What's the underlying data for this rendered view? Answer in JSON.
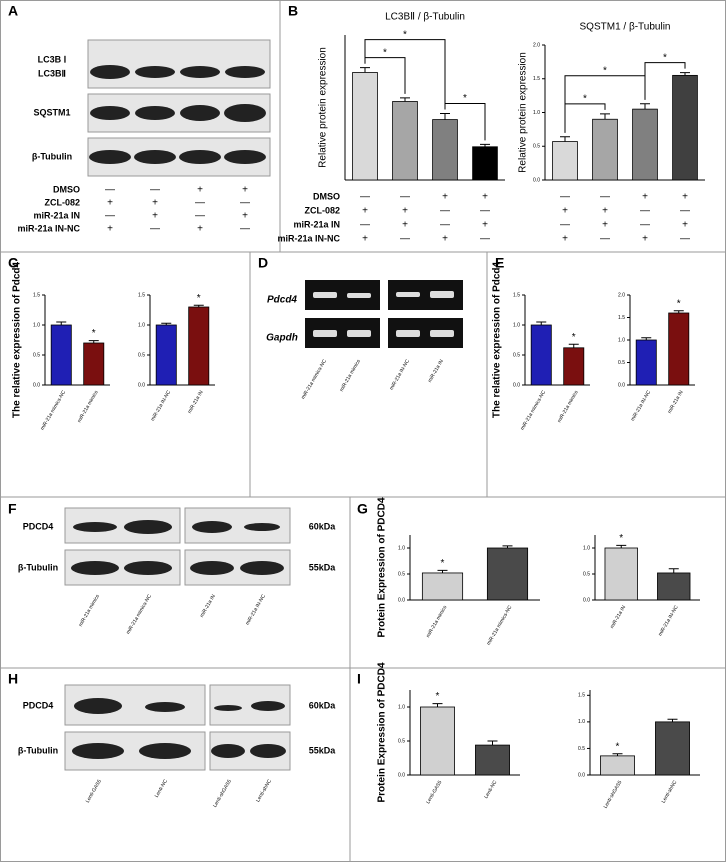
{
  "panel_letters": [
    "A",
    "B",
    "C",
    "D",
    "E",
    "F",
    "G",
    "H",
    "I"
  ],
  "blot_a": {
    "labels": [
      "LC3B Ⅰ",
      "LC3BⅡ",
      "SQSTM1",
      "β-Tubulin"
    ]
  },
  "treatments_a": {
    "labels": [
      "DMSO",
      "ZCL-082",
      "miR-21a IN",
      "miR-21a IN-NC"
    ],
    "rows": [
      [
        "—",
        "—",
        "+",
        "+"
      ],
      [
        "+",
        "+",
        "—",
        "—"
      ],
      [
        "—",
        "+",
        "—",
        "+"
      ],
      [
        "+",
        "—",
        "+",
        "—"
      ]
    ]
  },
  "treatments_b": {
    "labels": [
      "DMSO",
      "ZCL-082",
      "miR-21a IN",
      "miR-21a IN-NC"
    ],
    "rows": [
      [
        "—",
        "—",
        "+",
        "+"
      ],
      [
        "+",
        "+",
        "—",
        "—"
      ],
      [
        "—",
        "+",
        "—",
        "+"
      ],
      [
        "+",
        "—",
        "+",
        "—"
      ]
    ]
  },
  "gel_d": {
    "labels": [
      "Pdcd4",
      "Gapdh"
    ],
    "lanes": [
      "miR-21a mimics-NC",
      "miR-21a mimics",
      "miR-21a IN-NC",
      "miR-21a IN"
    ]
  },
  "blot_f": {
    "labels": [
      "PDCD4",
      "β-Tubulin"
    ],
    "sizes": [
      "60kDa",
      "55kDa"
    ],
    "lanes": [
      "miR-21a mimics",
      "miR-21a mimics-NC",
      "miR-21a IN",
      "miR-21a IN-NC"
    ]
  },
  "blot_h": {
    "labels": [
      "PDCD4",
      "β-Tubulin"
    ],
    "sizes": [
      "60kDa",
      "55kDa"
    ],
    "lanes": [
      "Lenti-GAS5",
      "Lenti-NC",
      "Lenti-shGAS5",
      "Lenti-shNC"
    ]
  },
  "chart_data": [
    {
      "type": "bar",
      "title": "LC3BⅡ / β-Tubulin",
      "y_label": "Relative protein expression",
      "categories": [
        null,
        null,
        null,
        null
      ],
      "values": [
        1.78,
        1.3,
        1.0,
        0.55
      ],
      "errors": [
        0.08,
        0.06,
        0.1,
        0.04
      ],
      "colors": [
        "#d9d9d9",
        "#a6a6a6",
        "#808080",
        "#000000"
      ],
      "ylim": [
        0,
        2.4
      ],
      "yticks": [],
      "annotations": [
        "*",
        "*",
        "*"
      ]
    },
    {
      "type": "bar",
      "title": "SQSTM1 / β-Tubulin",
      "y_label": "Relative protein expression",
      "categories": [
        null,
        null,
        null,
        null
      ],
      "values": [
        0.57,
        0.9,
        1.05,
        1.55
      ],
      "errors": [
        0.07,
        0.08,
        0.08,
        0.04
      ],
      "colors": [
        "#d9d9d9",
        "#a6a6a6",
        "#808080",
        "#404040"
      ],
      "ylim": [
        0,
        2.0
      ],
      "yticks": [
        {
          "value": 0,
          "label": "0.0"
        },
        0.5,
        {
          "value": 1,
          "label": "1.0"
        },
        1.5,
        {
          "value": 2,
          "label": "2.0"
        }
      ],
      "annotations": [
        "*",
        "*",
        "*"
      ]
    },
    {
      "type": "bar",
      "y_label": "The relative expression of Pdcd4",
      "categories": [
        "miR-21a mimics-NC",
        "miR-21a mimics"
      ],
      "values": [
        1.0,
        0.7
      ],
      "errors": [
        0.05,
        0.04
      ],
      "colors": [
        "#1f1fb4",
        "#7a0f0f"
      ],
      "ylim": [
        0,
        1.5
      ],
      "yticks": [
        {
          "value": 0,
          "label": "0.0"
        },
        0.5,
        {
          "value": 1,
          "label": "1.0"
        },
        1.5
      ],
      "stars": [
        null,
        "*"
      ]
    },
    {
      "type": "bar",
      "categories": [
        "miR-21a IN-NC",
        "miR-21a IN"
      ],
      "values": [
        1.0,
        1.3
      ],
      "errors": [
        0.03,
        0.03
      ],
      "colors": [
        "#1f1fb4",
        "#7a0f0f"
      ],
      "ylim": [
        0,
        1.5
      ],
      "yticks": [
        {
          "value": 0,
          "label": "0.0"
        },
        0.5,
        {
          "value": 1,
          "label": "1.0"
        },
        1.5
      ],
      "stars": [
        null,
        "*"
      ]
    },
    {
      "type": "bar",
      "y_label": "The relative expression of Pdcd4",
      "categories": [
        "miR-21a mimics-NC",
        "miR-21a mimics"
      ],
      "values": [
        1.0,
        0.62
      ],
      "errors": [
        0.05,
        0.06
      ],
      "colors": [
        "#1f1fb4",
        "#7a0f0f"
      ],
      "ylim": [
        0,
        1.5
      ],
      "yticks": [
        {
          "value": 0,
          "label": "0.0"
        },
        0.5,
        {
          "value": 1,
          "label": "1.0"
        },
        1.5
      ],
      "stars": [
        null,
        "*"
      ]
    },
    {
      "type": "bar",
      "categories": [
        "miR-21a IN-NC",
        "miR-21a IN"
      ],
      "values": [
        1.0,
        1.6
      ],
      "errors": [
        0.05,
        0.05
      ],
      "colors": [
        "#1f1fb4",
        "#7a0f0f"
      ],
      "ylim": [
        0,
        2.0
      ],
      "yticks": [
        {
          "value": 0,
          "label": "0.0"
        },
        0.5,
        {
          "value": 1,
          "label": "1.0"
        },
        1.5,
        {
          "value": 2,
          "label": "2.0"
        }
      ],
      "stars": [
        null,
        "*"
      ]
    },
    {
      "type": "bar",
      "y_label": "Protein Expression of PDCD4",
      "categories": [
        "miR-21a mimics",
        "miR-21a mimics-NC"
      ],
      "values": [
        0.52,
        1.0
      ],
      "errors": [
        0.05,
        0.04
      ],
      "colors": [
        "#d0d0d0",
        "#4a4a4a"
      ],
      "ylim": [
        0,
        1.25
      ],
      "yticks": [
        {
          "value": 0,
          "label": "0.0"
        },
        0.5,
        {
          "value": 1,
          "label": "1.0"
        }
      ],
      "stars": [
        "*",
        null
      ]
    },
    {
      "type": "bar",
      "categories": [
        "miR-21a IN",
        "miR-21a IN-NC"
      ],
      "values": [
        1.0,
        0.52
      ],
      "errors": [
        0.05,
        0.08
      ],
      "colors": [
        "#d0d0d0",
        "#4a4a4a"
      ],
      "ylim": [
        0,
        1.25
      ],
      "yticks": [
        {
          "value": 0,
          "label": "0.0"
        },
        0.5,
        {
          "value": 1,
          "label": "1.0"
        }
      ],
      "stars": [
        "*",
        null
      ]
    },
    {
      "type": "bar",
      "y_label": "Protein Expression of PDCD4",
      "categories": [
        "Lenti-GAS5",
        "Lenti-NC"
      ],
      "values": [
        1.0,
        0.44
      ],
      "errors": [
        0.05,
        0.06
      ],
      "colors": [
        "#d0d0d0",
        "#4a4a4a"
      ],
      "ylim": [
        0,
        1.25
      ],
      "yticks": [
        {
          "value": 0,
          "label": "0.0"
        },
        0.5,
        {
          "value": 1,
          "label": "1.0"
        }
      ],
      "stars": [
        "*",
        null
      ]
    },
    {
      "type": "bar",
      "categories": [
        "Lenti-shGAS5",
        "Lenti-shNC"
      ],
      "values": [
        0.36,
        1.0
      ],
      "errors": [
        0.04,
        0.05
      ],
      "colors": [
        "#d0d0d0",
        "#4a4a4a"
      ],
      "ylim": [
        0,
        1.6
      ],
      "yticks": [
        {
          "value": 0,
          "label": "0.0"
        },
        0.5,
        {
          "value": 1,
          "label": "1.0"
        },
        1.5
      ],
      "stars": [
        "*",
        null
      ]
    }
  ]
}
